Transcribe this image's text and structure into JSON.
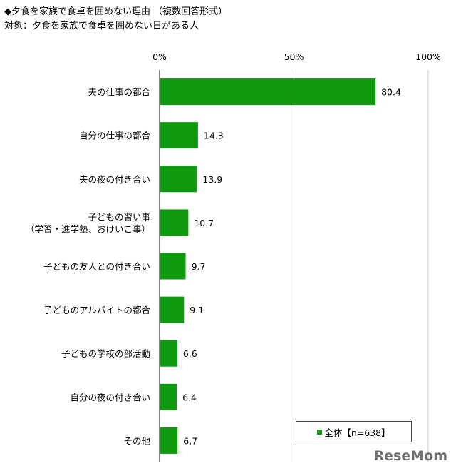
{
  "titles": {
    "line1": "◆夕食を家族で食卓を囲めない理由 （複数回答形式）",
    "line2": "対象：夕食を家族で食卓を囲めない日がある人"
  },
  "legend": {
    "label": "全体【n=638】"
  },
  "watermark": "ReseMom",
  "colors": {
    "bar": "#109A10",
    "axis": "#000000",
    "grid": "#c8c8c8"
  },
  "chart_data": {
    "type": "bar",
    "orientation": "horizontal",
    "categories": [
      [
        "夫の仕事の都合"
      ],
      [
        "自分の仕事の都合"
      ],
      [
        "夫の夜の付き合い"
      ],
      [
        "子どもの習い事",
        "（学習・進学塾、おけいこ事）"
      ],
      [
        "子どもの友人との付き合い"
      ],
      [
        "子どものアルバイトの都合"
      ],
      [
        "子どもの学校の部活動"
      ],
      [
        "自分の夜の付き合い"
      ],
      [
        "その他"
      ]
    ],
    "series": [
      {
        "name": "全体【n=638】",
        "values": [
          80.4,
          14.3,
          13.9,
          10.7,
          9.7,
          9.1,
          6.6,
          6.4,
          6.7
        ]
      }
    ],
    "value_labels": [
      "80.4",
      "14.3",
      "13.9",
      "10.7",
      "9.7",
      "9.1",
      "6.6",
      "6.4",
      "6.7"
    ],
    "xlim": [
      0,
      100
    ],
    "xticks": [
      "0%",
      "50%",
      "100%"
    ],
    "grid": "vertical at 50% and 100%",
    "legend_position": "bottom-right"
  }
}
